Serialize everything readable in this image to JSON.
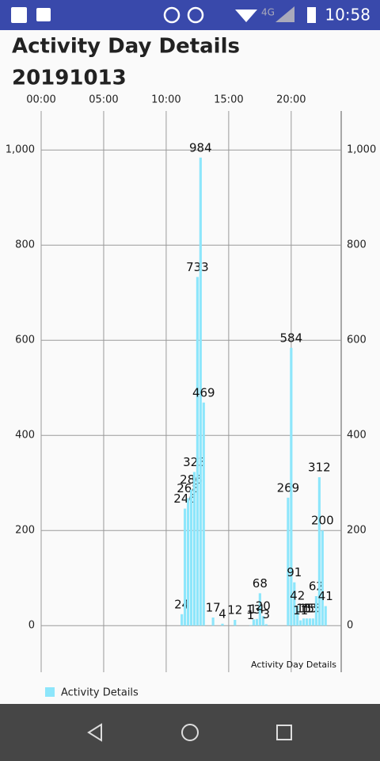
{
  "status_bar": {
    "network": "4G",
    "time": "10:58"
  },
  "header": {
    "title": "Activity Day Details",
    "date": "20191013"
  },
  "chart_data": {
    "type": "bar",
    "description": "Activity Day Details",
    "x": [
      11.25,
      11.5,
      11.75,
      12.0,
      12.25,
      12.5,
      12.75,
      13.0,
      13.75,
      14.5,
      15.5,
      16.75,
      17.0,
      17.25,
      17.5,
      17.75,
      18.0,
      19.75,
      20.0,
      20.25,
      20.5,
      20.75,
      21.0,
      21.25,
      21.5,
      21.75,
      22.0,
      22.25,
      22.5,
      22.75
    ],
    "series": [
      {
        "name": "Activity Details",
        "color": "#8de6fb",
        "values": [
          24,
          246,
          268,
          286,
          323,
          733,
          984,
          469,
          17,
          4,
          12,
          1,
          13,
          14,
          68,
          20,
          3,
          269,
          584,
          91,
          42,
          11,
          15,
          15,
          15,
          15,
          62,
          312,
          200,
          41
        ]
      }
    ],
    "xlim": [
      0,
      24
    ],
    "xticks": [
      {
        "value": 0,
        "label": "00:00"
      },
      {
        "value": 5,
        "label": "05:00"
      },
      {
        "value": 10,
        "label": "10:00"
      },
      {
        "value": 15,
        "label": "15:00"
      },
      {
        "value": 20,
        "label": "20:00"
      }
    ],
    "ylim": [
      -98,
      1082
    ],
    "yticks": [
      0,
      200,
      400,
      600,
      800,
      {
        "value": 1000,
        "label": "1,000"
      }
    ],
    "grid": true
  }
}
